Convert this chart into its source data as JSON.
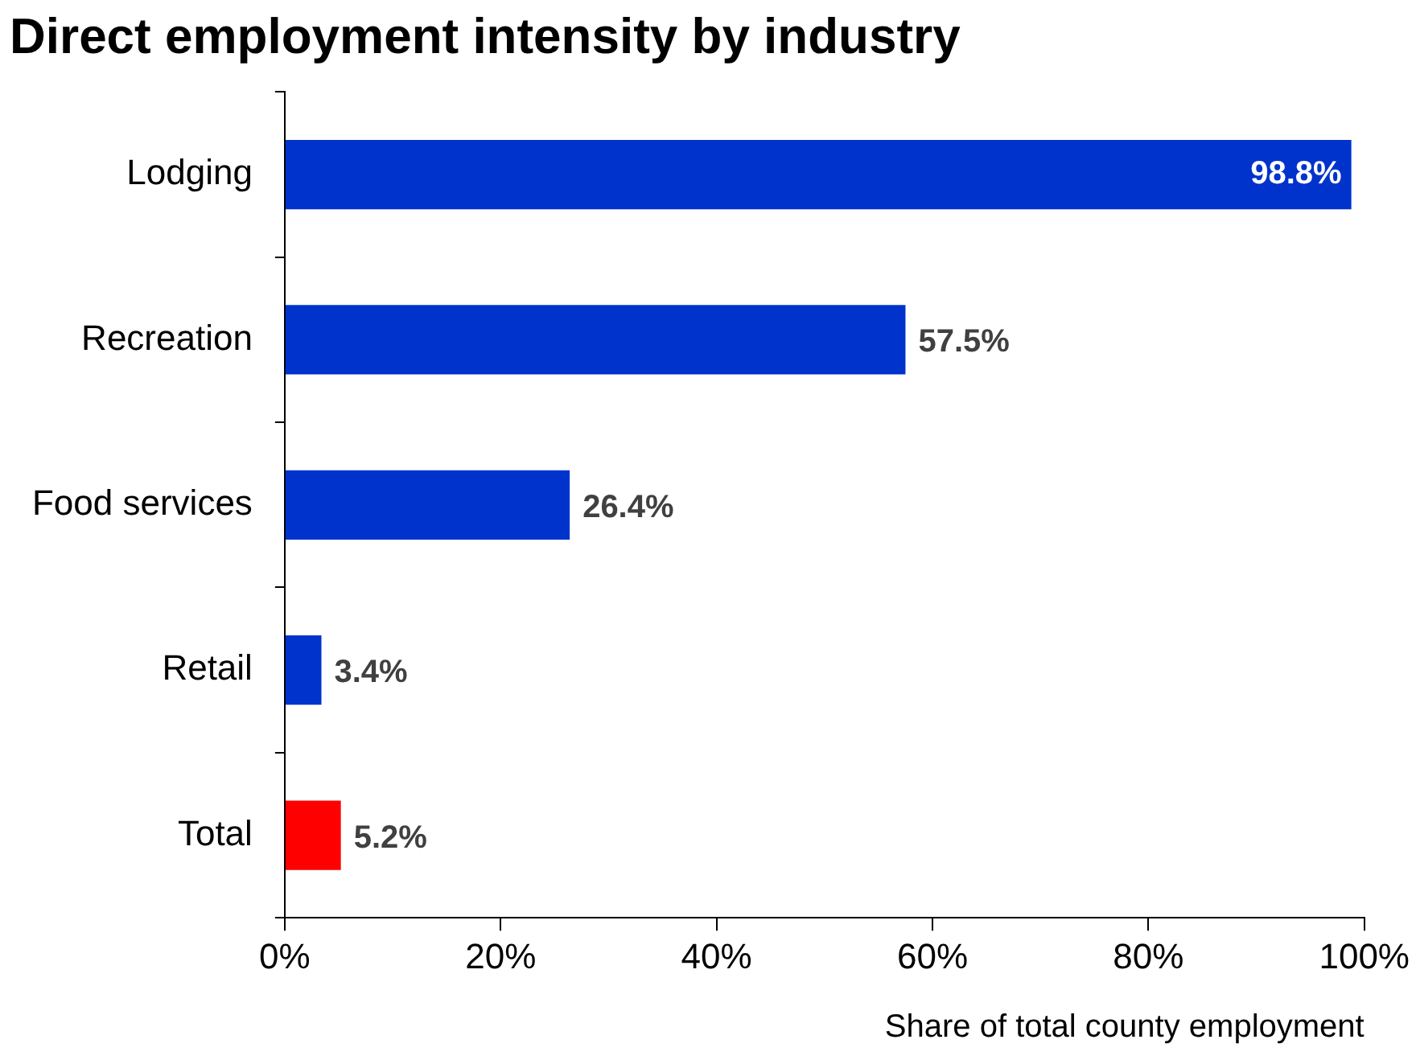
{
  "chart_data": {
    "type": "bar",
    "orientation": "horizontal",
    "title": "Direct employment intensity by industry",
    "xlabel": "Share of total county employment",
    "categories": [
      "Lodging",
      "Recreation",
      "Food services",
      "Retail",
      "Total"
    ],
    "values": [
      98.8,
      57.5,
      26.4,
      3.4,
      5.2
    ],
    "colors": [
      "#0033cc",
      "#0033cc",
      "#0033cc",
      "#0033cc",
      "#ff0000"
    ],
    "value_labels": [
      "98.8%",
      "57.5%",
      "26.4%",
      "3.4%",
      "5.2%"
    ],
    "xlim": [
      0,
      100
    ],
    "xticks": [
      {
        "value": 0,
        "label": "0%"
      },
      {
        "value": 20,
        "label": "20%"
      },
      {
        "value": 40,
        "label": "40%"
      },
      {
        "value": 60,
        "label": "60%"
      },
      {
        "value": 80,
        "label": "80%"
      },
      {
        "value": 100,
        "label": "100%"
      }
    ],
    "grid": false,
    "legend": false
  }
}
